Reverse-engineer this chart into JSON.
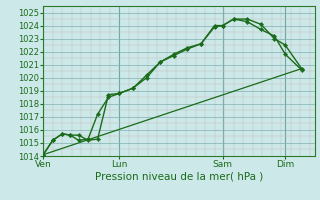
{
  "xlabel": "Pression niveau de la mer( hPa )",
  "bg_color": "#cce8e8",
  "line_color": "#1a6b1a",
  "minor_grid_color": "#c8b8b8",
  "major_grid_color": "#80b0b0",
  "vline_color": "#5a9090",
  "ylim": [
    1014,
    1025.5
  ],
  "xlim": [
    0,
    10
  ],
  "yticks": [
    1014,
    1015,
    1016,
    1017,
    1018,
    1019,
    1020,
    1021,
    1022,
    1023,
    1024,
    1025
  ],
  "day_labels": [
    "Ven",
    "Lun",
    "Sam",
    "Dim"
  ],
  "day_positions": [
    0.0,
    2.8,
    6.6,
    8.9
  ],
  "line1_x": [
    0.0,
    0.35,
    0.7,
    1.0,
    1.3,
    1.65,
    2.0,
    2.4,
    2.8,
    3.3,
    3.8,
    4.3,
    4.8,
    5.3,
    5.8,
    6.3,
    6.6,
    7.0,
    7.5,
    8.0,
    8.5,
    8.9,
    9.5
  ],
  "line1_y": [
    1014.1,
    1015.2,
    1015.7,
    1015.6,
    1015.6,
    1015.2,
    1015.3,
    1018.7,
    1018.8,
    1019.2,
    1020.0,
    1021.2,
    1021.7,
    1022.2,
    1022.6,
    1023.9,
    1024.0,
    1024.5,
    1024.5,
    1024.1,
    1023.0,
    1022.5,
    1020.7
  ],
  "line2_x": [
    0.0,
    0.35,
    0.7,
    1.0,
    1.3,
    1.65,
    2.0,
    2.4,
    2.8,
    3.3,
    3.8,
    4.3,
    4.8,
    5.3,
    5.8,
    6.3,
    6.6,
    7.0,
    7.5,
    8.0,
    8.5,
    8.9,
    9.5
  ],
  "line2_y": [
    1014.1,
    1015.2,
    1015.7,
    1015.6,
    1015.2,
    1015.3,
    1017.2,
    1018.5,
    1018.8,
    1019.2,
    1020.2,
    1021.2,
    1021.8,
    1022.3,
    1022.6,
    1024.0,
    1024.0,
    1024.5,
    1024.3,
    1023.7,
    1023.2,
    1021.8,
    1020.6
  ],
  "line3_x": [
    0.0,
    9.5
  ],
  "line3_y": [
    1014.1,
    1020.7
  ],
  "xlabel_fontsize": 7.5,
  "ytick_fontsize": 6.0,
  "xtick_fontsize": 6.5
}
